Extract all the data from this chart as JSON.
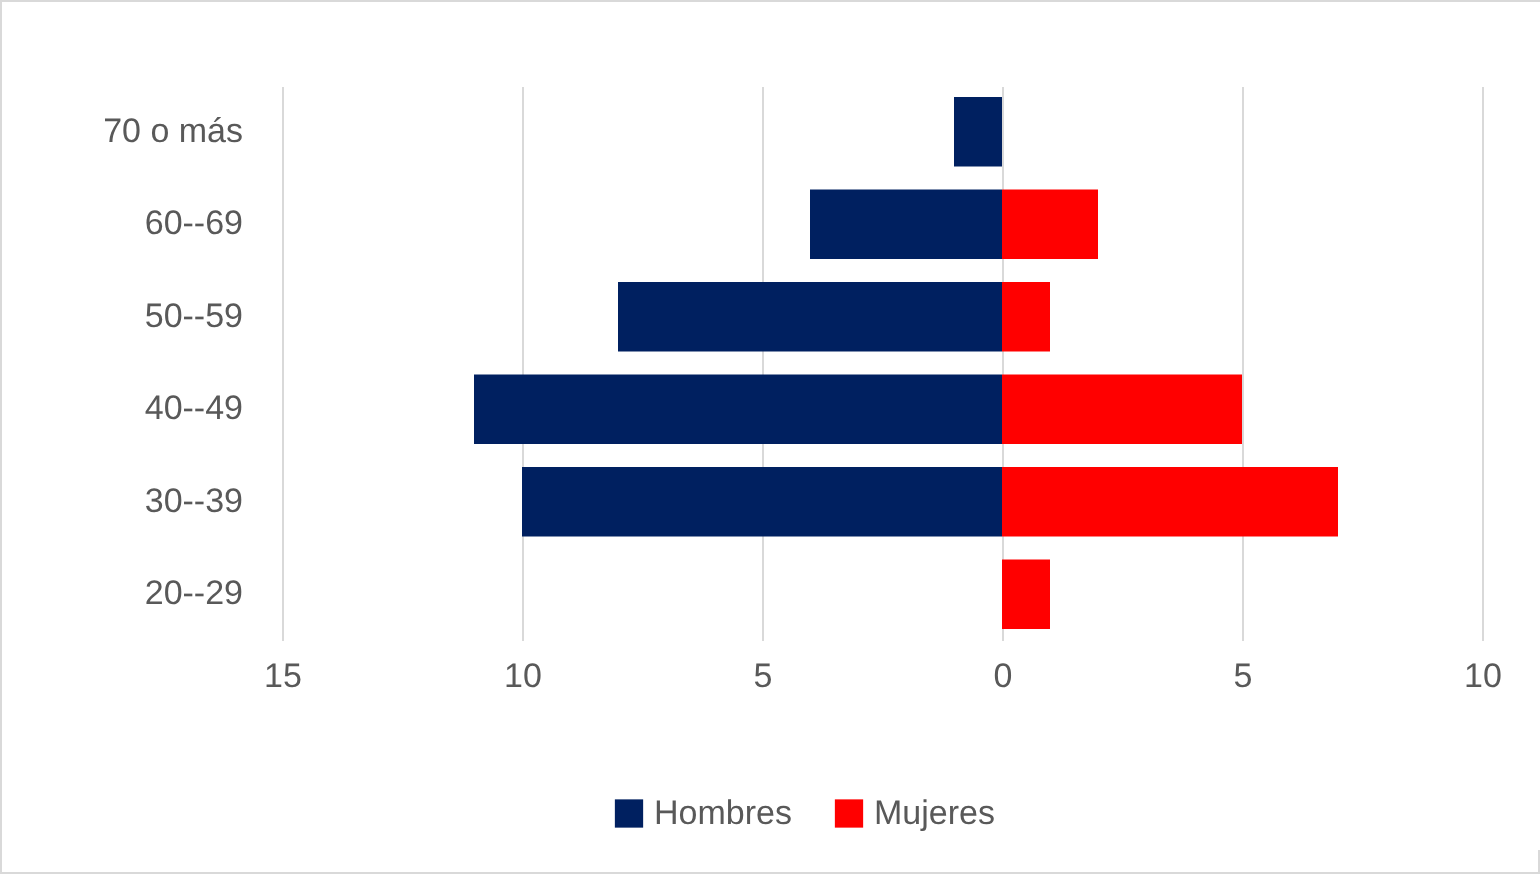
{
  "chart_data": {
    "type": "bar",
    "orientation": "horizontal",
    "categories": [
      "70 o más",
      "60--69",
      "50--59",
      "40--49",
      "30--39",
      "20--29"
    ],
    "series": [
      {
        "name": "Hombres",
        "color": "#002060",
        "values": [
          -1,
          -4,
          -8,
          -11,
          -10,
          0
        ]
      },
      {
        "name": "Mujeres",
        "color": "#ff0000",
        "values": [
          0,
          2,
          1,
          5,
          7,
          1
        ]
      }
    ],
    "xlim": [
      -15,
      10
    ],
    "xticks": [
      {
        "value": -15,
        "label": "15"
      },
      {
        "value": -10,
        "label": "10"
      },
      {
        "value": -5,
        "label": "5"
      },
      0,
      5,
      10
    ],
    "stacked": true,
    "grid": "x",
    "legend": "bottom"
  }
}
